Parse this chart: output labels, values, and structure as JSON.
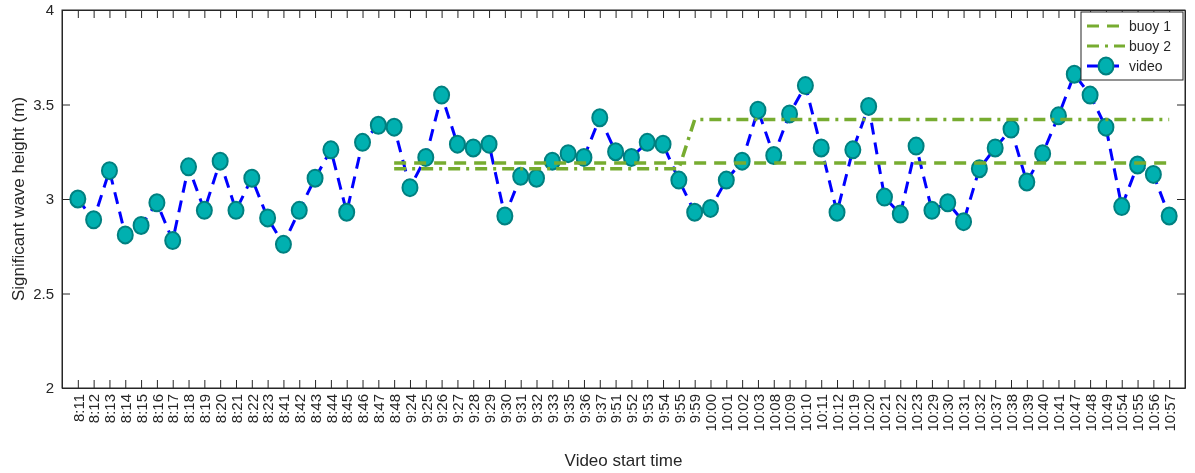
{
  "chart_data": {
    "type": "line",
    "xlabel": "Video start time",
    "ylabel": "Significant wave height (m)",
    "categories": [
      "8:11",
      "8:12",
      "8:13",
      "8:14",
      "8:15",
      "8:16",
      "8:17",
      "8:18",
      "8:19",
      "8:20",
      "8:21",
      "8:22",
      "8:23",
      "8:41",
      "8:42",
      "8:43",
      "8:44",
      "8:45",
      "8:46",
      "8:47",
      "8:48",
      "9:24",
      "9:25",
      "9:26",
      "9:27",
      "9:28",
      "9:29",
      "9:30",
      "9:31",
      "9:32",
      "9:33",
      "9:35",
      "9:36",
      "9:37",
      "9:51",
      "9:52",
      "9:53",
      "9:54",
      "9:55",
      "9:59",
      "10:00",
      "10:01",
      "10:02",
      "10:03",
      "10:08",
      "10:09",
      "10:10",
      "10:11",
      "10:12",
      "10:19",
      "10:20",
      "10:21",
      "10:22",
      "10:23",
      "10:29",
      "10:30",
      "10:31",
      "10:32",
      "10:37",
      "10:38",
      "10:39",
      "10:40",
      "10:41",
      "10:47",
      "10:48",
      "10:49",
      "10:54",
      "10:55",
      "10:56",
      "10:57"
    ],
    "series": [
      {
        "name": "buoy 1",
        "color": "#77ac30",
        "line_style": "dashed",
        "marker": "none",
        "values": [
          null,
          null,
          null,
          null,
          null,
          null,
          null,
          null,
          null,
          null,
          null,
          null,
          null,
          null,
          null,
          null,
          null,
          null,
          null,
          null,
          3.19,
          3.19,
          3.19,
          3.19,
          3.19,
          3.19,
          3.19,
          3.19,
          3.19,
          3.19,
          3.19,
          3.19,
          3.19,
          3.19,
          3.19,
          3.19,
          3.19,
          3.19,
          3.19,
          3.19,
          3.19,
          3.19,
          3.19,
          3.19,
          3.19,
          3.19,
          3.19,
          3.19,
          3.19,
          3.19,
          3.19,
          3.19,
          3.19,
          3.19,
          3.19,
          3.19,
          3.19,
          3.19,
          3.19,
          3.19,
          3.19,
          3.19,
          3.19,
          3.19,
          3.19,
          3.19,
          3.19,
          3.19,
          3.19,
          3.19
        ]
      },
      {
        "name": "buoy 2",
        "color": "#77ac30",
        "line_style": "dashdot",
        "marker": "none",
        "values": [
          null,
          null,
          null,
          null,
          null,
          null,
          null,
          null,
          null,
          null,
          null,
          null,
          null,
          null,
          null,
          null,
          null,
          null,
          null,
          null,
          3.16,
          3.16,
          3.16,
          3.16,
          3.16,
          3.16,
          3.16,
          3.16,
          3.16,
          3.16,
          3.16,
          3.16,
          3.16,
          3.16,
          3.16,
          3.16,
          3.16,
          3.16,
          3.16,
          3.42,
          3.42,
          3.42,
          3.42,
          3.42,
          3.42,
          3.42,
          3.42,
          3.42,
          3.42,
          3.42,
          3.42,
          3.42,
          3.42,
          3.42,
          3.42,
          3.42,
          3.42,
          3.42,
          3.42,
          3.42,
          3.42,
          3.42,
          3.42,
          3.42,
          3.42,
          3.42,
          3.42,
          3.42,
          3.42,
          3.42
        ]
      },
      {
        "name": "video",
        "color": "#0000ff",
        "line_style": "dashed",
        "marker": "circle",
        "values": [
          3.0,
          2.89,
          3.15,
          2.81,
          2.86,
          2.98,
          2.78,
          3.17,
          2.94,
          3.2,
          2.94,
          3.11,
          2.9,
          2.76,
          2.94,
          3.11,
          3.26,
          2.93,
          3.3,
          3.39,
          3.38,
          3.06,
          3.22,
          3.55,
          3.29,
          3.27,
          3.29,
          2.91,
          3.12,
          3.11,
          3.2,
          3.24,
          3.22,
          3.43,
          3.25,
          3.22,
          3.3,
          3.29,
          3.1,
          2.93,
          2.95,
          3.1,
          3.2,
          3.47,
          3.23,
          3.45,
          3.6,
          3.27,
          2.93,
          3.26,
          3.49,
          3.01,
          2.92,
          3.28,
          2.94,
          2.98,
          2.88,
          3.16,
          3.27,
          3.37,
          3.09,
          3.24,
          3.44,
          3.66,
          3.55,
          3.38,
          2.96,
          3.18,
          3.13,
          2.91
        ]
      }
    ],
    "ylim": [
      2,
      4
    ],
    "yticks": [
      2,
      2.5,
      3,
      3.5,
      4
    ],
    "grid": false,
    "legend": "top right"
  }
}
